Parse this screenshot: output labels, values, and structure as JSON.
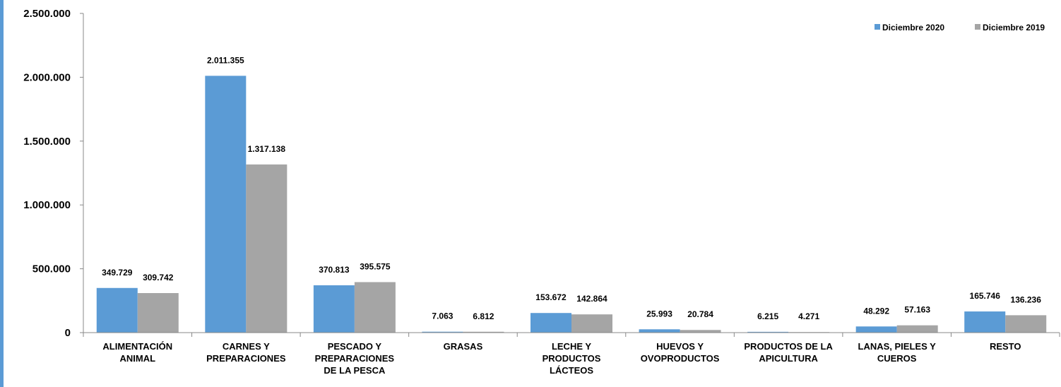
{
  "chart_data": {
    "type": "bar",
    "categories": [
      "ALIMENTACIÓN ANIMAL",
      "CARNES Y PREPARACIONES",
      "PESCADO Y PREPARACIONES DE LA PESCA",
      "GRASAS",
      "LECHE Y PRODUCTOS LÁCTEOS",
      "HUEVOS Y OVOPRODUCTOS",
      "PRODUCTOS DE LA APICULTURA",
      "LANAS, PIELES Y CUEROS",
      "RESTO"
    ],
    "series": [
      {
        "name": "Diciembre 2020",
        "color": "#5b9bd5",
        "values": [
          349729,
          2011355,
          370813,
          7063,
          153672,
          25993,
          6215,
          48292,
          165746
        ],
        "value_labels": [
          "349.729",
          "2.011.355",
          "370.813",
          "7.063",
          "153.672",
          "25.993",
          "6.215",
          "48.292",
          "165.746"
        ]
      },
      {
        "name": "Diciembre 2019",
        "color": "#a5a5a5",
        "values": [
          309742,
          1317138,
          395575,
          6812,
          142864,
          20784,
          4271,
          57163,
          136236
        ],
        "value_labels": [
          "309.742",
          "1.317.138",
          "395.575",
          "6.812",
          "142.864",
          "20.784",
          "4.271",
          "57.163",
          "136.236"
        ]
      }
    ],
    "ylim": [
      0,
      2500000
    ],
    "yticks": [
      0,
      {
        "value": 500000,
        "label": "500.000"
      },
      {
        "value": 1000000,
        "label": "1.000.000"
      },
      {
        "value": 1500000,
        "label": "1.500.000"
      },
      {
        "value": 2000000,
        "label": "2.000.000"
      },
      {
        "value": 2500000,
        "label": "2.500.000"
      }
    ],
    "grid": false,
    "legend": "top-right"
  }
}
